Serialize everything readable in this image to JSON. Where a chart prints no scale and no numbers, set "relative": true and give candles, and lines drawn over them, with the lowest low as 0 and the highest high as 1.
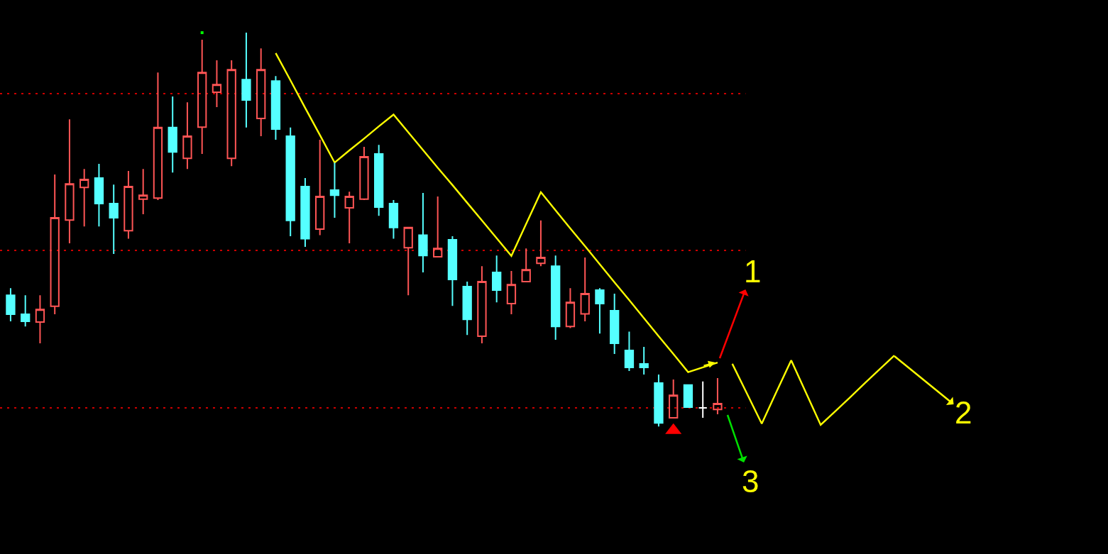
{
  "chart_data": {
    "type": "candlestick",
    "relative": true,
    "categories": [
      null,
      null,
      null,
      null,
      null,
      null,
      null,
      null,
      null,
      null,
      null,
      null,
      null,
      null,
      null,
      null,
      null,
      null,
      null,
      null,
      null,
      null,
      null,
      null,
      null,
      null,
      null,
      null,
      null,
      null,
      null,
      null,
      null,
      null,
      null,
      null,
      null,
      null,
      null,
      null,
      null,
      null,
      null,
      null,
      null,
      null,
      null,
      null,
      null,
      null,
      null,
      null,
      null,
      null,
      null,
      null,
      null,
      null,
      null,
      null,
      null
    ],
    "ohlc": [
      [
        0.333,
        0.351,
        0.267,
        0.285
      ],
      [
        0.285,
        0.333,
        0.254,
        0.267
      ],
      [
        0.265,
        0.333,
        0.211,
        0.297
      ],
      [
        0.305,
        0.64,
        0.285,
        0.53
      ],
      [
        0.524,
        0.78,
        0.465,
        0.616
      ],
      [
        0.607,
        0.654,
        0.508,
        0.627
      ],
      [
        0.631,
        0.667,
        0.508,
        0.566
      ],
      [
        0.566,
        0.614,
        0.438,
        0.53
      ],
      [
        0.497,
        0.649,
        0.477,
        0.609
      ],
      [
        0.577,
        0.654,
        0.539,
        0.587
      ],
      [
        0.58,
        0.899,
        0.575,
        0.759
      ],
      [
        0.759,
        0.838,
        0.645,
        0.697
      ],
      [
        0.681,
        0.823,
        0.654,
        0.737
      ],
      [
        0.76,
        0.982,
        0.692,
        0.899
      ],
      [
        0.849,
        0.93,
        0.811,
        0.868
      ],
      [
        0.681,
        0.93,
        0.661,
        0.906
      ],
      [
        0.881,
        1.0,
        0.759,
        0.829
      ],
      [
        0.782,
        0.96,
        0.737,
        0.906
      ],
      [
        0.877,
        0.89,
        0.728,
        0.755
      ],
      [
        0.737,
        0.759,
        0.483,
        0.523
      ],
      [
        0.609,
        0.631,
        0.456,
        0.477
      ],
      [
        0.501,
        0.728,
        0.486,
        0.584
      ],
      [
        0.6,
        0.67,
        0.53,
        0.587
      ],
      [
        0.555,
        0.596,
        0.465,
        0.584
      ],
      [
        0.577,
        0.71,
        0.575,
        0.685
      ],
      [
        0.692,
        0.715,
        0.535,
        0.557
      ],
      [
        0.566,
        0.575,
        0.477,
        0.505
      ],
      [
        0.454,
        0.505,
        0.333,
        0.505
      ],
      [
        0.486,
        0.593,
        0.391,
        0.434
      ],
      [
        0.431,
        0.584,
        0.431,
        0.452
      ],
      [
        0.474,
        0.483,
        0.306,
        0.373
      ],
      [
        0.355,
        0.368,
        0.232,
        0.272
      ],
      [
        0.229,
        0.407,
        0.211,
        0.368
      ],
      [
        0.391,
        0.434,
        0.315,
        0.346
      ],
      [
        0.312,
        0.395,
        0.285,
        0.36
      ],
      [
        0.368,
        0.452,
        0.368,
        0.398
      ],
      [
        0.414,
        0.523,
        0.407,
        0.429
      ],
      [
        0.407,
        0.434,
        0.22,
        0.254
      ],
      [
        0.254,
        0.351,
        0.25,
        0.315
      ],
      [
        0.286,
        0.429,
        0.267,
        0.337
      ],
      [
        0.346,
        0.351,
        0.236,
        0.312
      ],
      [
        0.294,
        0.337,
        0.184,
        0.211
      ],
      [
        0.193,
        0.241,
        0.141,
        0.15
      ],
      [
        0.159,
        0.202,
        0.132,
        0.15
      ],
      [
        0.11,
        0.132,
        0.0,
        0.009
      ],
      [
        0.022,
        0.119,
        0.022,
        0.079
      ],
      [
        0.105,
        0.105,
        0.049,
        0.049
      ],
      [
        0.047,
        0.114,
        0.022,
        0.047
      ],
      [
        0.043,
        0.123,
        0.031,
        0.058
      ],
      null,
      null,
      null,
      null,
      null,
      null,
      null,
      null,
      null,
      null,
      null,
      null
    ],
    "colors": [
      "#55ffff",
      "#55ffff",
      "#ff5555",
      "#ff5555",
      "#ff5555",
      "#ff5555",
      "#55ffff",
      "#55ffff",
      "#ff5555",
      "#ff5555",
      "#ff5555",
      "#55ffff",
      "#ff5555",
      "#ff5555",
      "#ff5555",
      "#ff5555",
      "#55ffff",
      "#ff5555",
      "#55ffff",
      "#55ffff",
      "#55ffff",
      "#ff5555",
      "#55ffff",
      "#ff5555",
      "#ff5555",
      "#55ffff",
      "#55ffff",
      "#ff5555",
      "#55ffff",
      "#ff5555",
      "#55ffff",
      "#55ffff",
      "#ff5555",
      "#55ffff",
      "#ff5555",
      "#ff5555",
      "#ff5555",
      "#55ffff",
      "#ff5555",
      "#ff5555",
      "#55ffff",
      "#55ffff",
      "#55ffff",
      "#55ffff",
      "#55ffff",
      "#ff5555",
      "#55ffff",
      "#ffffff",
      "#ff5555",
      null,
      null,
      null,
      null,
      null,
      null,
      null,
      null,
      null,
      null,
      null,
      null
    ],
    "series": [
      {
        "type": "line",
        "color": "#ffff00",
        "values": [
          null,
          null,
          null,
          null,
          null,
          null,
          null,
          null,
          null,
          null,
          null,
          null,
          null,
          null,
          null,
          null,
          null,
          null,
          0.948,
          0.879,
          0.809,
          0.74,
          0.67,
          0.701,
          0.731,
          0.762,
          0.792,
          0.747,
          0.702,
          0.657,
          0.613,
          0.568,
          0.523,
          0.478,
          0.433,
          0.514,
          0.595,
          0.549,
          0.503,
          0.458,
          0.412,
          0.366,
          0.321,
          0.275,
          0.229,
          0.184,
          0.138,
          0.15,
          0.162,
          null,
          null,
          null,
          null,
          null,
          null,
          null,
          null,
          null,
          null,
          null,
          null
        ]
      },
      {
        "type": "line",
        "color": "#ffff00",
        "values": [
          null,
          null,
          null,
          null,
          null,
          null,
          null,
          null,
          null,
          null,
          null,
          null,
          null,
          null,
          null,
          null,
          null,
          null,
          null,
          null,
          null,
          null,
          null,
          null,
          null,
          null,
          null,
          null,
          null,
          null,
          null,
          null,
          null,
          null,
          null,
          null,
          null,
          null,
          null,
          null,
          null,
          null,
          null,
          null,
          null,
          null,
          null,
          null,
          null,
          0.159,
          0.083,
          0.007,
          0.088,
          0.168,
          0.086,
          0.004,
          0.039,
          0.074,
          0.11,
          0.145,
          0.18
        ]
      },
      {
        "type": "scatter",
        "color": "#ff0000",
        "marker": "triangle",
        "values": [
          null,
          null,
          null,
          null,
          null,
          null,
          null,
          null,
          null,
          null,
          null,
          null,
          null,
          null,
          null,
          null,
          null,
          null,
          null,
          null,
          null,
          null,
          null,
          null,
          null,
          null,
          null,
          null,
          null,
          null,
          null,
          null,
          null,
          null,
          null,
          null,
          null,
          null,
          null,
          null,
          null,
          null,
          null,
          null,
          null,
          -0.01,
          null,
          null,
          null,
          null,
          null,
          null,
          null,
          null,
          null,
          null,
          null,
          null,
          null,
          null,
          null
        ]
      },
      {
        "type": "scatter",
        "color": "#00ff00",
        "marker": "square",
        "values": [
          null,
          null,
          null,
          null,
          null,
          null,
          null,
          null,
          null,
          null,
          null,
          null,
          null,
          1.0,
          null,
          null,
          null,
          null,
          null,
          null,
          null,
          null,
          null,
          null,
          null,
          null,
          null,
          null,
          null,
          null,
          null,
          null,
          null,
          null,
          null,
          null,
          null,
          null,
          null,
          null,
          null,
          null,
          null,
          null,
          null,
          null,
          null,
          null,
          null,
          null,
          null,
          null,
          null,
          null,
          null,
          null,
          null,
          null,
          null,
          null,
          null
        ]
      }
    ],
    "ref_lines": [
      {
        "axis": "y",
        "value": 0.845,
        "color": "#cc0000",
        "line_style": "dotted"
      },
      {
        "axis": "y",
        "value": 0.447,
        "color": "#cc0000",
        "line_style": "dotted"
      },
      {
        "axis": "y",
        "value": 0.047,
        "color": "#cc0000",
        "line_style": "dotted"
      }
    ],
    "annotations": [
      "1",
      "2",
      "3"
    ]
  }
}
